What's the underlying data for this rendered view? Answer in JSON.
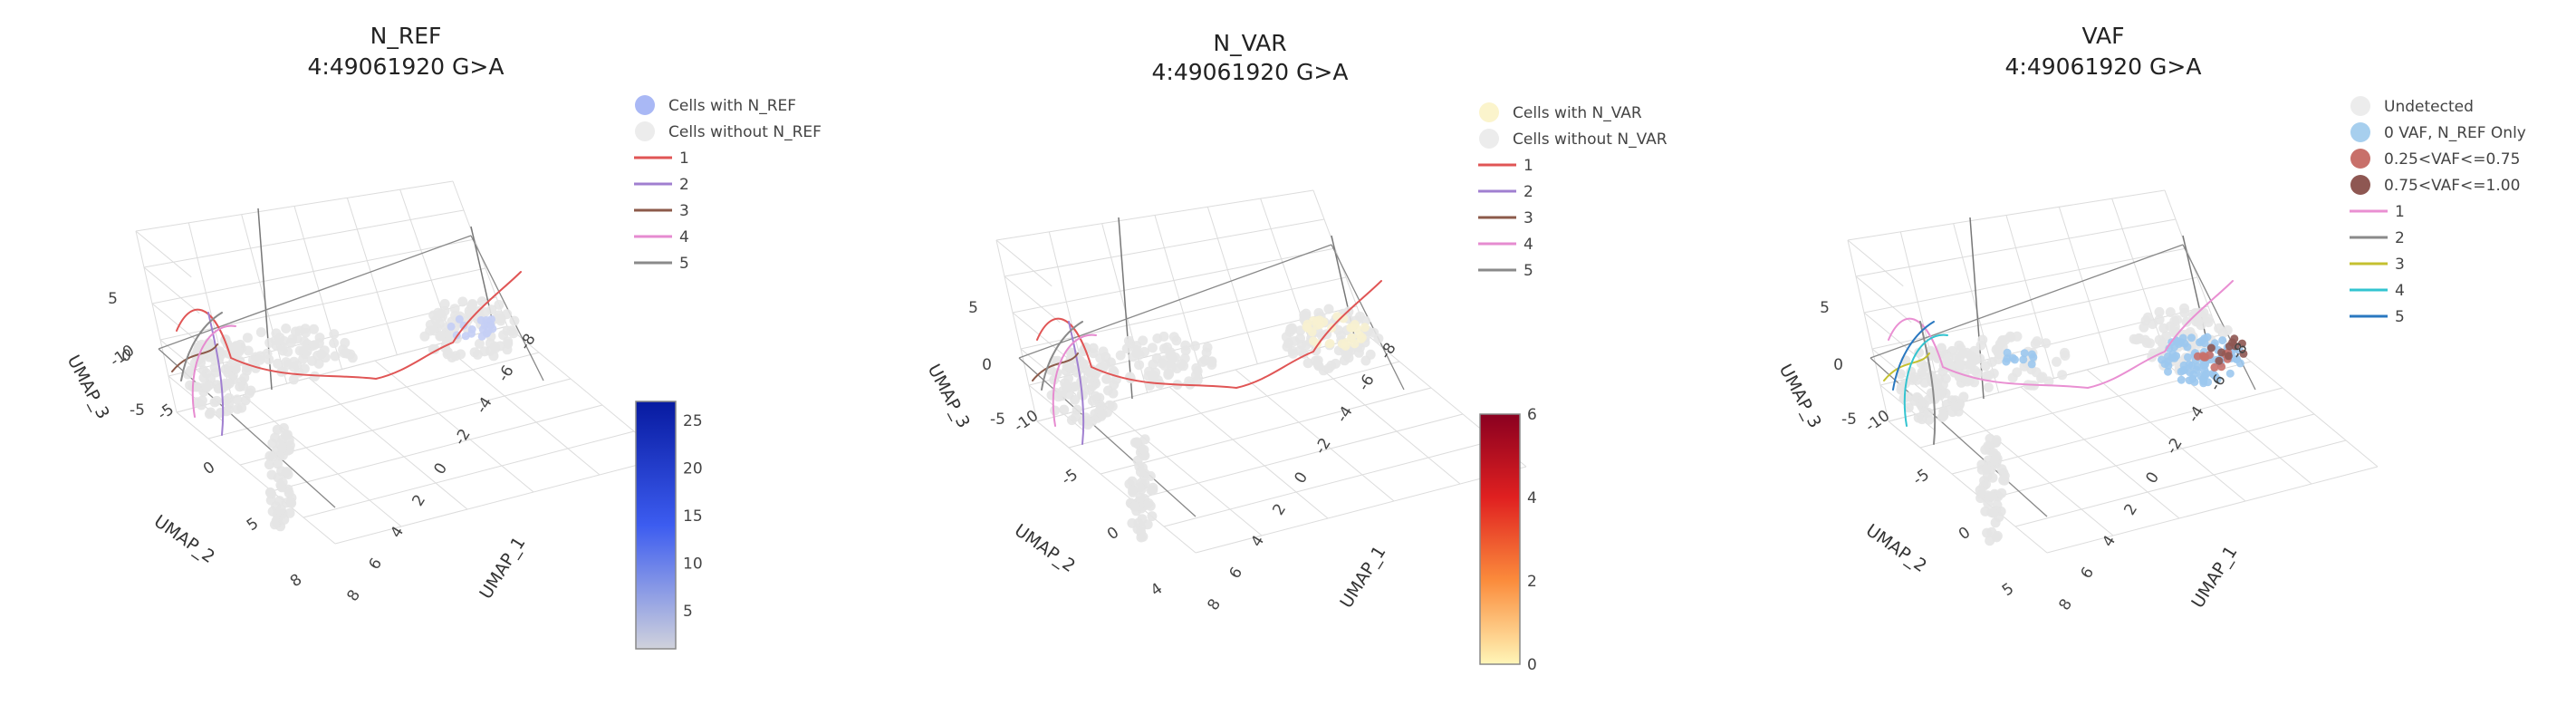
{
  "chart_data": [
    {
      "type": "scatter3d",
      "title": "N_REF",
      "subtitle": "4:49061920 G>A",
      "axes": {
        "x": {
          "label": "UMAP_1",
          "ticks": [
            "8",
            "6",
            "4",
            "2",
            "0",
            "-2",
            "-4",
            "-6",
            "-8"
          ]
        },
        "y": {
          "label": "UMAP_2",
          "ticks": [
            "8",
            "5",
            "0",
            "-5",
            "-10"
          ]
        },
        "z": {
          "label": "UMAP_3",
          "ticks": [
            "5",
            "0",
            "-5"
          ]
        }
      },
      "legend": {
        "position": "right",
        "markers": [
          {
            "label": "Cells with N_REF",
            "color": "#a9b8f5"
          },
          {
            "label": "Cells without N_REF",
            "color": "#ececec"
          }
        ],
        "lines": [
          {
            "label": "1",
            "color": "#e05555"
          },
          {
            "label": "2",
            "color": "#a07fd0"
          },
          {
            "label": "3",
            "color": "#8c5a4a"
          },
          {
            "label": "4",
            "color": "#e68bd0"
          },
          {
            "label": "5",
            "color": "#8a8a8a"
          }
        ]
      },
      "colorbar": {
        "min": 1,
        "max": 27,
        "ticks": [
          5,
          10,
          15,
          20,
          25
        ],
        "colors": [
          "#d0d2dc",
          "#3c5cf0",
          "#071aa0"
        ]
      }
    },
    {
      "type": "scatter3d",
      "title": "N_VAR",
      "subtitle": "4:49061920 G>A",
      "axes": {
        "x": {
          "label": "UMAP_1",
          "ticks": [
            "8",
            "6",
            "4",
            "2",
            "0",
            "-2",
            "-4",
            "-6",
            "-8"
          ]
        },
        "y": {
          "label": "UMAP_2",
          "ticks": [
            "4",
            "0",
            "-5",
            "-10"
          ]
        },
        "z": {
          "label": "UMAP_3",
          "ticks": [
            "5",
            "0",
            "-5"
          ]
        }
      },
      "legend": {
        "position": "right",
        "markers": [
          {
            "label": "Cells with N_VAR",
            "color": "#fbf4cc"
          },
          {
            "label": "Cells without N_VAR",
            "color": "#ececec"
          }
        ],
        "lines": [
          {
            "label": "1",
            "color": "#e05555"
          },
          {
            "label": "2",
            "color": "#a07fd0"
          },
          {
            "label": "3",
            "color": "#8c5a4a"
          },
          {
            "label": "4",
            "color": "#e68bd0"
          },
          {
            "label": "5",
            "color": "#8a8a8a"
          }
        ]
      },
      "colorbar": {
        "min": 0,
        "max": 6,
        "ticks": [
          0,
          2,
          4,
          6
        ],
        "colors": [
          "#fff6b8",
          "#fb8c3c",
          "#e02020",
          "#8a0020"
        ]
      }
    },
    {
      "type": "scatter3d",
      "title": "VAF",
      "subtitle": "4:49061920 G>A",
      "axes": {
        "x": {
          "label": "UMAP_1",
          "ticks": [
            "8",
            "6",
            "4",
            "2",
            "0",
            "-2",
            "-4",
            "-6",
            "-8"
          ]
        },
        "y": {
          "label": "UMAP_2",
          "ticks": [
            "5",
            "0",
            "-5",
            "-10"
          ]
        },
        "z": {
          "label": "UMAP_3",
          "ticks": [
            "5",
            "0",
            "-5"
          ]
        }
      },
      "legend": {
        "position": "right",
        "markers": [
          {
            "label": "Undetected",
            "color": "#ececec"
          },
          {
            "label": "0 VAF, N_REF Only",
            "color": "#a7cfee"
          },
          {
            "label": "0.25<VAF<=0.75",
            "color": "#c8706a"
          },
          {
            "label": "0.75<VAF<=1.00",
            "color": "#8e5752"
          }
        ],
        "lines": [
          {
            "label": "1",
            "color": "#e98fd2"
          },
          {
            "label": "2",
            "color": "#8a8a8a"
          },
          {
            "label": "3",
            "color": "#c4c030"
          },
          {
            "label": "4",
            "color": "#33c4d0"
          },
          {
            "label": "5",
            "color": "#2a78c0"
          }
        ]
      }
    }
  ]
}
